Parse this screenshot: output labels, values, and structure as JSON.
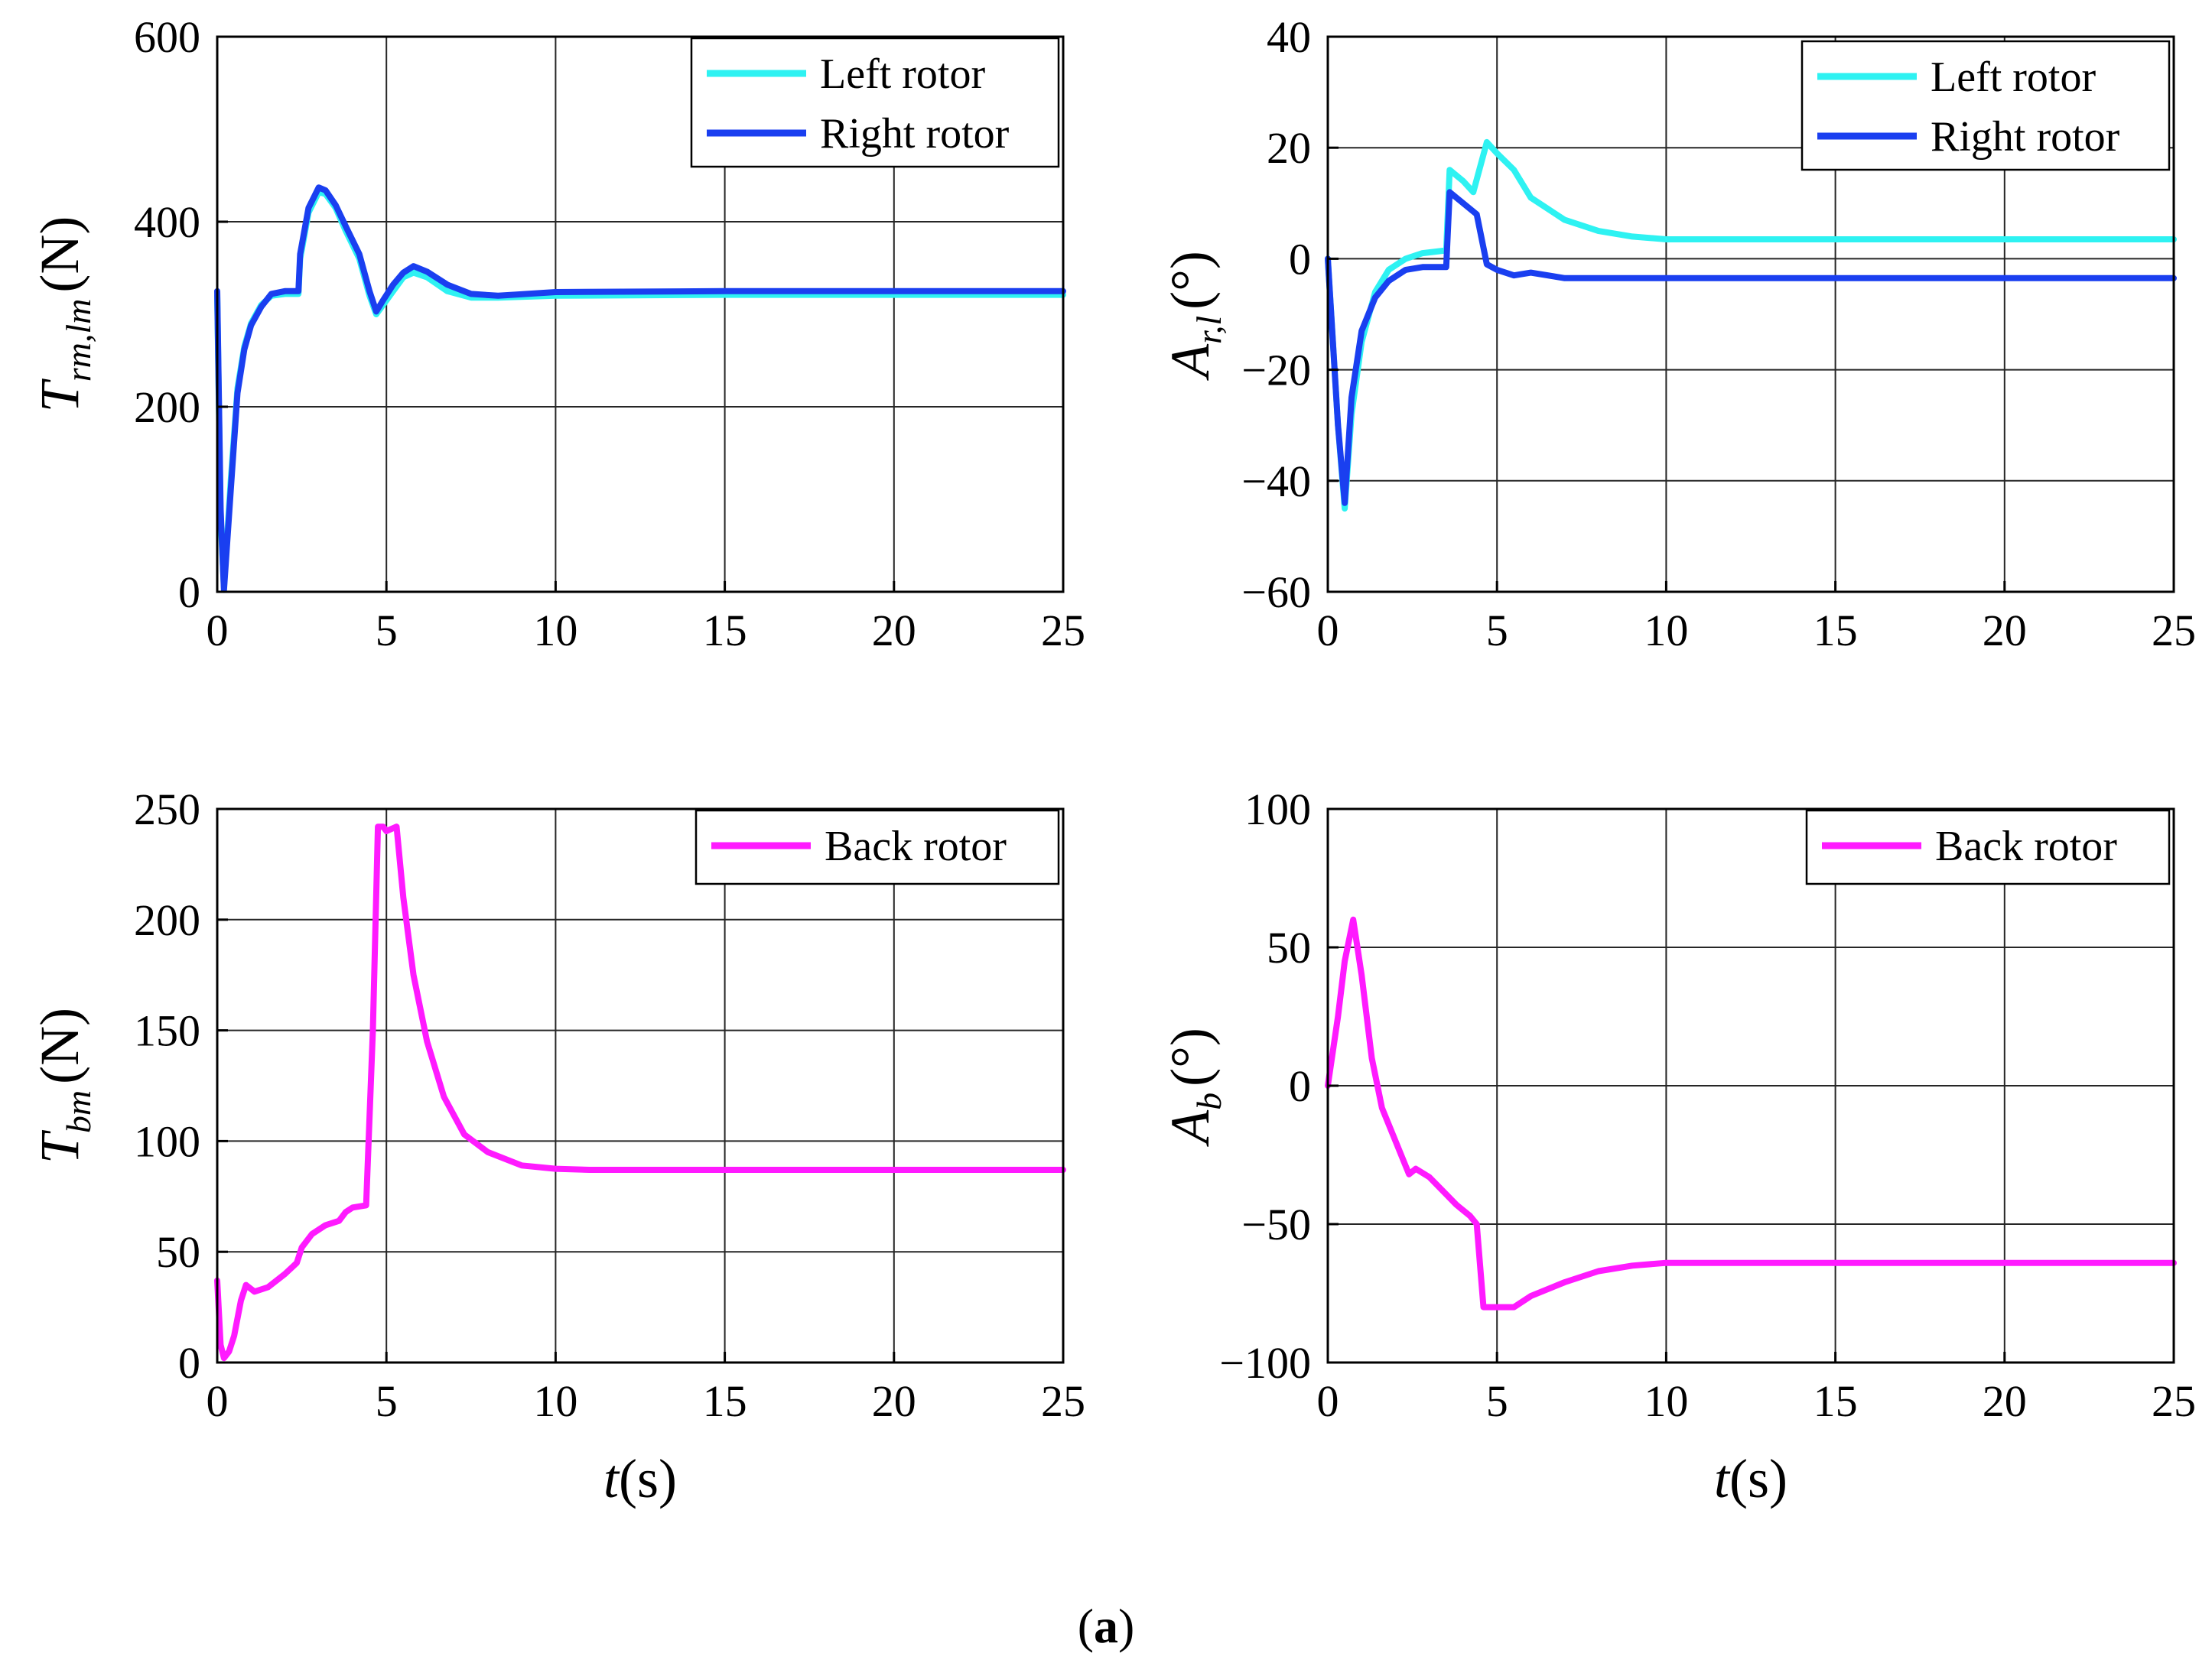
{
  "figure": {
    "caption_label": "(a)",
    "caption_letter": "a",
    "axis_color": "#000000",
    "grid_color": "#262626"
  },
  "chart_data": [
    {
      "id": "top-left",
      "type": "line",
      "ylabel": {
        "main": "T",
        "sub": "rm,lm",
        "unit": "(N)"
      },
      "xlabel": "",
      "xlim": [
        0,
        25
      ],
      "ylim": [
        0,
        600
      ],
      "xticks": [
        0,
        5,
        10,
        15,
        20,
        25
      ],
      "yticks": [
        0,
        200,
        400,
        600
      ],
      "grid": true,
      "legend": "top-right",
      "series": [
        {
          "name": "Left rotor",
          "color": "#2ef2f2",
          "x": [
            0,
            0.1,
            0.2,
            0.4,
            0.6,
            0.8,
            1.0,
            1.3,
            1.6,
            2.0,
            2.4,
            2.45,
            2.7,
            3.0,
            3.2,
            3.5,
            3.8,
            4.2,
            4.5,
            4.7,
            4.9,
            5.2,
            5.5,
            5.8,
            6.2,
            6.8,
            7.5,
            8.3,
            10,
            15,
            20,
            25
          ],
          "y": [
            320,
            80,
            5,
            120,
            220,
            265,
            290,
            310,
            320,
            322,
            322,
            360,
            410,
            432,
            430,
            415,
            390,
            360,
            320,
            300,
            310,
            325,
            340,
            345,
            340,
            325,
            318,
            318,
            320,
            321,
            321,
            321
          ]
        },
        {
          "name": "Right rotor",
          "color": "#1a3ff0",
          "x": [
            0,
            0.1,
            0.2,
            0.4,
            0.6,
            0.8,
            1.0,
            1.3,
            1.6,
            2.0,
            2.4,
            2.45,
            2.7,
            3.0,
            3.2,
            3.5,
            3.8,
            4.2,
            4.5,
            4.7,
            4.9,
            5.2,
            5.5,
            5.8,
            6.2,
            6.8,
            7.5,
            8.3,
            10,
            15,
            20,
            25
          ],
          "y": [
            325,
            90,
            2,
            110,
            215,
            262,
            288,
            308,
            322,
            325,
            325,
            365,
            415,
            437,
            434,
            418,
            395,
            365,
            325,
            303,
            315,
            332,
            345,
            352,
            346,
            332,
            322,
            320,
            324,
            325,
            325,
            325
          ]
        }
      ]
    },
    {
      "id": "top-right",
      "type": "line",
      "ylabel": {
        "main": "A",
        "sub": "r,l",
        "unit": "(°)"
      },
      "xlabel": "",
      "xlim": [
        0,
        25
      ],
      "ylim": [
        -60,
        40
      ],
      "xticks": [
        0,
        5,
        10,
        15,
        20,
        25
      ],
      "yticks": [
        -60,
        -40,
        -20,
        0,
        20,
        40
      ],
      "grid": true,
      "legend": "top-right",
      "series": [
        {
          "name": "Left rotor",
          "color": "#2ef2f2",
          "x": [
            0,
            0.3,
            0.5,
            0.7,
            1.0,
            1.4,
            1.8,
            2.3,
            2.8,
            3.5,
            3.6,
            4.0,
            4.3,
            4.7,
            5.0,
            5.5,
            6.0,
            7.0,
            8.0,
            9.0,
            10.0,
            15,
            20,
            25
          ],
          "y": [
            0,
            -30,
            -45,
            -28,
            -15,
            -6,
            -2,
            0,
            1,
            1.5,
            16,
            14,
            12,
            21,
            19,
            16,
            11,
            7,
            5,
            4,
            3.5,
            3.5,
            3.5,
            3.5
          ]
        },
        {
          "name": "Right rotor",
          "color": "#1a3ff0",
          "x": [
            0,
            0.3,
            0.5,
            0.7,
            1.0,
            1.4,
            1.8,
            2.3,
            2.8,
            3.5,
            3.6,
            4.0,
            4.4,
            4.7,
            5.0,
            5.5,
            6.0,
            7.0,
            8.0,
            10.0,
            15,
            20,
            25
          ],
          "y": [
            0,
            -30,
            -44,
            -25,
            -13,
            -7,
            -4,
            -2,
            -1.5,
            -1.5,
            12,
            10,
            8,
            -1,
            -2,
            -3,
            -2.5,
            -3.5,
            -3.5,
            -3.5,
            -3.5,
            -3.5,
            -3.5
          ]
        }
      ]
    },
    {
      "id": "bottom-left",
      "type": "line",
      "ylabel": {
        "main": "T",
        "sub": "bm",
        "unit": "(N)"
      },
      "xlabel": "t(s)",
      "xlim": [
        0,
        25
      ],
      "ylim": [
        0,
        250
      ],
      "xticks": [
        0,
        5,
        10,
        15,
        20,
        25
      ],
      "yticks": [
        0,
        50,
        100,
        150,
        200,
        250
      ],
      "grid": true,
      "legend": "top-right",
      "series": [
        {
          "name": "Back rotor",
          "color": "#ff1aff",
          "x": [
            0,
            0.1,
            0.2,
            0.35,
            0.5,
            0.7,
            0.85,
            1.1,
            1.5,
            2.0,
            2.35,
            2.5,
            2.8,
            3.2,
            3.6,
            3.8,
            4.0,
            4.4,
            4.6,
            4.75,
            4.9,
            5.0,
            5.3,
            5.5,
            5.8,
            6.2,
            6.7,
            7.3,
            8.0,
            9.0,
            10.0,
            11.0,
            12.0,
            15,
            20,
            25
          ],
          "y": [
            37,
            8,
            2,
            5,
            12,
            28,
            35,
            32,
            34,
            40,
            45,
            52,
            58,
            62,
            64,
            68,
            70,
            71,
            150,
            242,
            242,
            240,
            242,
            210,
            175,
            145,
            120,
            103,
            95,
            89,
            87.5,
            87,
            87,
            87,
            87,
            87
          ]
        }
      ]
    },
    {
      "id": "bottom-right",
      "type": "line",
      "ylabel": {
        "main": "A",
        "sub": "b",
        "unit": "(°)"
      },
      "xlabel": "t(s)",
      "xlim": [
        0,
        25
      ],
      "ylim": [
        -100,
        100
      ],
      "xticks": [
        0,
        5,
        10,
        15,
        20,
        25
      ],
      "yticks": [
        -100,
        -50,
        0,
        50,
        100
      ],
      "grid": true,
      "legend": "top-right",
      "series": [
        {
          "name": "Back rotor",
          "color": "#ff1aff",
          "x": [
            0,
            0.3,
            0.5,
            0.75,
            1.0,
            1.3,
            1.6,
            2.0,
            2.4,
            2.6,
            3.0,
            3.4,
            3.8,
            4.2,
            4.4,
            4.6,
            5.0,
            5.5,
            6.0,
            7.0,
            8.0,
            9.0,
            10.0,
            15,
            20,
            25
          ],
          "y": [
            0,
            25,
            45,
            60,
            40,
            10,
            -8,
            -20,
            -32,
            -30,
            -33,
            -38,
            -43,
            -47,
            -50,
            -80,
            -80,
            -80,
            -76,
            -71,
            -67,
            -65,
            -64,
            -64,
            -64,
            -64
          ]
        }
      ]
    }
  ]
}
